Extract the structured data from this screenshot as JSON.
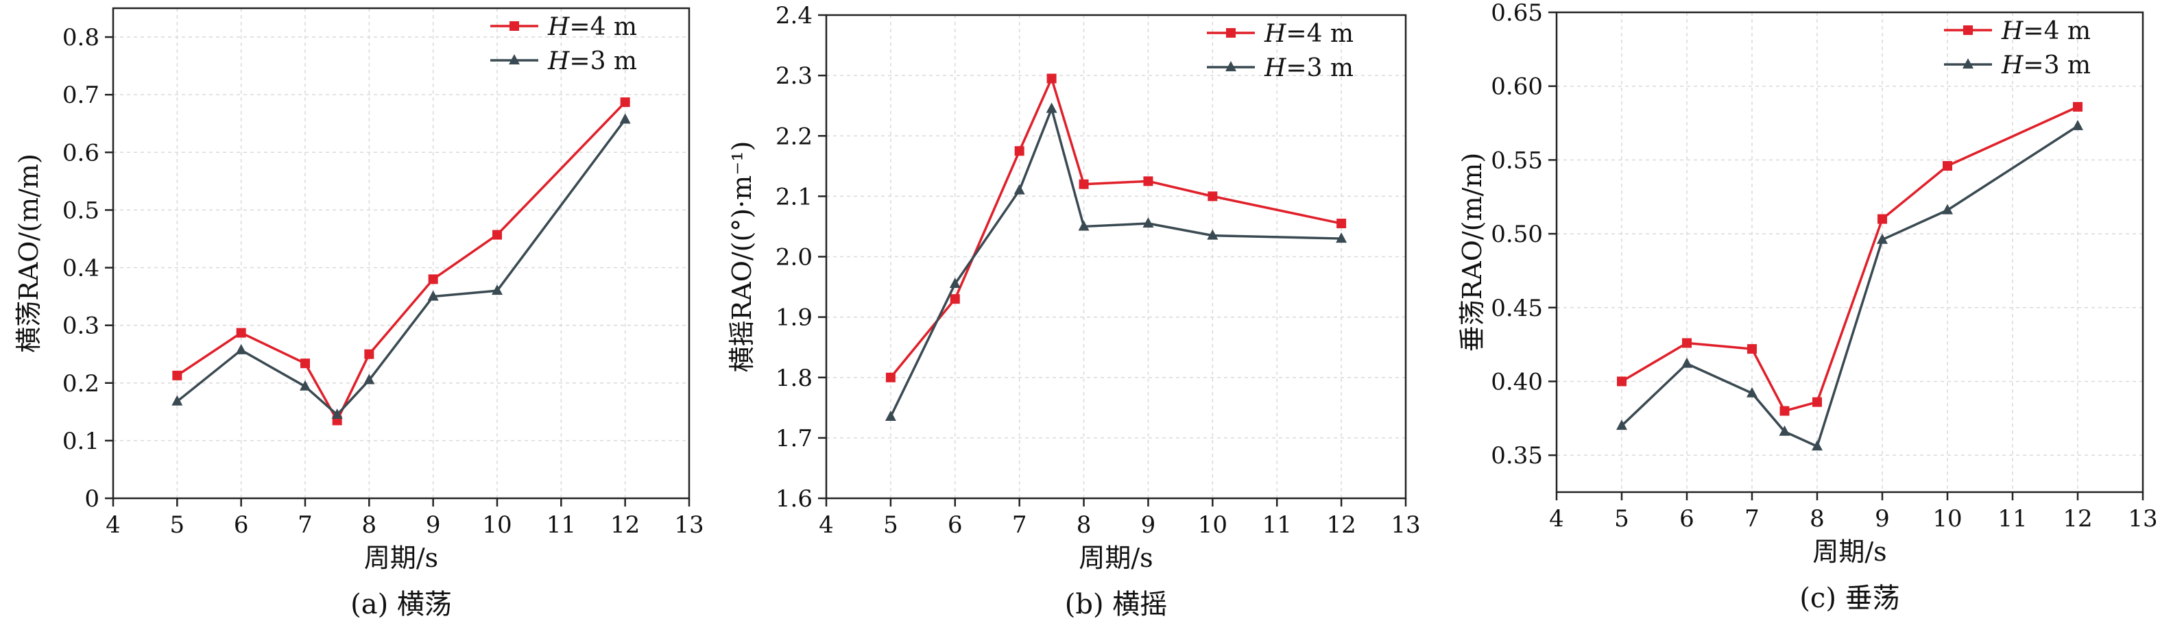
{
  "chart_data": [
    {
      "type": "line",
      "caption": "(a) 横荡",
      "xlabel": "周期/s",
      "ylabel": "横荡RAO/(m/m)",
      "xlim": [
        4,
        13
      ],
      "xticks": [
        "4",
        "5",
        "6",
        "7",
        "8",
        "9",
        "10",
        "11",
        "12",
        "13"
      ],
      "ylim": [
        0,
        0.85
      ],
      "yticks": [
        "0",
        "0.1",
        "0.2",
        "0.3",
        "0.4",
        "0.5",
        "0.6",
        "0.7",
        "0.8"
      ],
      "grid": true,
      "legend_position": "top-right",
      "series": [
        {
          "name": "H=4 m",
          "color": "#e0202a",
          "marker": "square",
          "x": [
            5,
            6,
            7,
            7.5,
            8,
            9,
            10,
            12
          ],
          "y": [
            0.213,
            0.287,
            0.234,
            0.135,
            0.25,
            0.38,
            0.457,
            0.687
          ]
        },
        {
          "name": "H=3 m",
          "color": "#3a4a52",
          "marker": "triangle",
          "x": [
            5,
            6,
            7,
            7.5,
            8,
            9,
            10,
            12
          ],
          "y": [
            0.168,
            0.257,
            0.194,
            0.145,
            0.205,
            0.35,
            0.36,
            0.657
          ]
        }
      ]
    },
    {
      "type": "line",
      "caption": "(b) 横摇",
      "xlabel": "周期/s",
      "ylabel": "横摇RAO/((°)·m⁻¹)",
      "xlim": [
        4,
        13
      ],
      "xticks": [
        "4",
        "5",
        "6",
        "7",
        "8",
        "9",
        "10",
        "11",
        "12",
        "13"
      ],
      "ylim": [
        1.6,
        2.4
      ],
      "yticks": [
        "1.6",
        "1.7",
        "1.8",
        "1.9",
        "2.0",
        "2.1",
        "2.2",
        "2.3",
        "2.4"
      ],
      "grid": true,
      "legend_position": "top-right",
      "series": [
        {
          "name": "H=4 m",
          "color": "#e0202a",
          "marker": "square",
          "x": [
            5,
            6,
            7,
            7.5,
            8,
            9,
            10,
            12
          ],
          "y": [
            1.8,
            1.93,
            2.175,
            2.295,
            2.12,
            2.125,
            2.1,
            2.055
          ]
        },
        {
          "name": "H=3 m",
          "color": "#3a4a52",
          "marker": "triangle",
          "x": [
            5,
            6,
            7,
            7.5,
            8,
            9,
            10,
            12
          ],
          "y": [
            1.735,
            1.955,
            2.11,
            2.245,
            2.05,
            2.055,
            2.035,
            2.03
          ]
        }
      ]
    },
    {
      "type": "line",
      "caption": "(c) 垂荡",
      "xlabel": "周期/s",
      "ylabel": "垂荡RAO/(m/m)",
      "xlim": [
        4,
        13
      ],
      "xticks": [
        "4",
        "5",
        "6",
        "7",
        "8",
        "9",
        "10",
        "11",
        "12",
        "13"
      ],
      "ylim": [
        0.325,
        0.65
      ],
      "yticks": [
        "0.35",
        "0.40",
        "0.45",
        "0.50",
        "0.55",
        "0.60",
        "0.65"
      ],
      "grid": true,
      "legend_position": "top-right",
      "series": [
        {
          "name": "H=4 m",
          "color": "#e0202a",
          "marker": "square",
          "x": [
            5,
            6,
            7,
            7.5,
            8,
            9,
            10,
            12
          ],
          "y": [
            0.4,
            0.426,
            0.422,
            0.38,
            0.386,
            0.51,
            0.546,
            0.586
          ]
        },
        {
          "name": "H=3 m",
          "color": "#3a4a52",
          "marker": "triangle",
          "x": [
            5,
            6,
            7,
            7.5,
            8,
            9,
            10,
            12
          ],
          "y": [
            0.37,
            0.412,
            0.392,
            0.366,
            0.356,
            0.496,
            0.516,
            0.573
          ]
        }
      ]
    }
  ]
}
